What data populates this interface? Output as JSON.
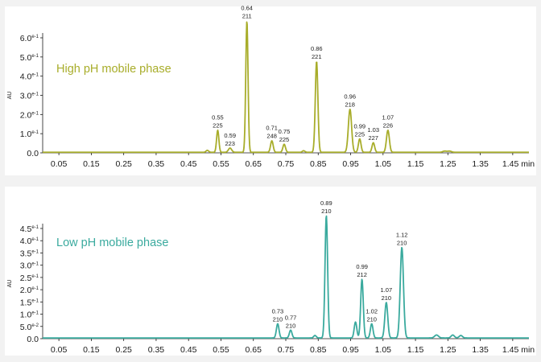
{
  "chart_data": [
    {
      "type": "line",
      "title": "High pH mobile phase",
      "ylabel": "AU",
      "xlabel": "",
      "x_unit": "min",
      "xlim": [
        0.0,
        1.5
      ],
      "ylim": [
        0,
        0.68
      ],
      "x_ticks": [
        "0.05",
        "0.15",
        "0.25",
        "0.35",
        "0.45",
        "0.55",
        "0.65",
        "0.75",
        "0.85",
        "0.95",
        "1.05",
        "1.15",
        "1.25",
        "1.35",
        "1.45"
      ],
      "y_ticks": [
        {
          "value": 0,
          "mantissa": "0.0",
          "exp": ""
        },
        {
          "value": 0.1,
          "mantissa": "1.0",
          "exp": "e-1"
        },
        {
          "value": 0.2,
          "mantissa": "2.0",
          "exp": "e-1"
        },
        {
          "value": 0.3,
          "mantissa": "3.0",
          "exp": "e-1"
        },
        {
          "value": 0.4,
          "mantissa": "4.0",
          "exp": "e-1"
        },
        {
          "value": 0.5,
          "mantissa": "5.0",
          "exp": "e-1"
        },
        {
          "value": 0.6,
          "mantissa": "6.0",
          "exp": "e-1"
        }
      ],
      "color": "#a8ad2a",
      "baseline": 0.003,
      "peaks": [
        {
          "x": 0.508,
          "y": 0.01,
          "width": 0.004
        },
        {
          "x": 0.54,
          "y": 0.115,
          "width": 0.0035,
          "label": [
            "0.55",
            "225"
          ]
        },
        {
          "x": 0.578,
          "y": 0.022,
          "width": 0.005,
          "label": [
            "0.59",
            "223"
          ]
        },
        {
          "x": 0.63,
          "y": 0.685,
          "width": 0.0035,
          "label": [
            "0.64",
            "211"
          ]
        },
        {
          "x": 0.707,
          "y": 0.06,
          "width": 0.004,
          "label": [
            "0.71",
            "248"
          ]
        },
        {
          "x": 0.745,
          "y": 0.042,
          "width": 0.004,
          "label": [
            "0.75",
            "225"
          ]
        },
        {
          "x": 0.805,
          "y": 0.008,
          "width": 0.004
        },
        {
          "x": 0.845,
          "y": 0.475,
          "width": 0.004,
          "label": [
            "0.86",
            "221"
          ]
        },
        {
          "x": 0.948,
          "y": 0.225,
          "width": 0.005,
          "label": [
            "0.96",
            "218"
          ]
        },
        {
          "x": 0.978,
          "y": 0.07,
          "width": 0.004,
          "label": [
            "0.99",
            "225"
          ]
        },
        {
          "x": 1.02,
          "y": 0.05,
          "width": 0.004,
          "label": [
            "1.03",
            "227"
          ]
        },
        {
          "x": 1.065,
          "y": 0.115,
          "width": 0.0045,
          "label": [
            "1.07",
            "226"
          ]
        },
        {
          "x": 1.24,
          "y": 0.006,
          "width": 0.006
        },
        {
          "x": 1.255,
          "y": 0.006,
          "width": 0.006
        }
      ]
    },
    {
      "type": "line",
      "title": "Low pH mobile phase",
      "ylabel": "AU",
      "xlabel": "",
      "x_unit": "min",
      "xlim": [
        0.0,
        1.5
      ],
      "ylim": [
        0,
        0.52
      ],
      "x_ticks": [
        "0.05",
        "0.15",
        "0.25",
        "0.35",
        "0.45",
        "0.55",
        "0.65",
        "0.75",
        "0.85",
        "0.95",
        "1.05",
        "1.15",
        "1.25",
        "1.35",
        "1.45"
      ],
      "y_ticks": [
        {
          "value": 0,
          "mantissa": "0.0",
          "exp": ""
        },
        {
          "value": 0.05,
          "mantissa": "5.0",
          "exp": "e-2"
        },
        {
          "value": 0.1,
          "mantissa": "1.0",
          "exp": "e-1"
        },
        {
          "value": 0.15,
          "mantissa": "1.5",
          "exp": "e-1"
        },
        {
          "value": 0.2,
          "mantissa": "2.0",
          "exp": "e-1"
        },
        {
          "value": 0.25,
          "mantissa": "2.5",
          "exp": "e-1"
        },
        {
          "value": 0.3,
          "mantissa": "3.0",
          "exp": "e-1"
        },
        {
          "value": 0.35,
          "mantissa": "3.5",
          "exp": "e-1"
        },
        {
          "value": 0.4,
          "mantissa": "4.0",
          "exp": "e-1"
        },
        {
          "value": 0.45,
          "mantissa": "4.5",
          "exp": "e-1"
        }
      ],
      "color": "#3aaa9e",
      "baseline": 0.003,
      "peaks": [
        {
          "x": 0.725,
          "y": 0.058,
          "width": 0.004,
          "label": [
            "0.73",
            "210"
          ]
        },
        {
          "x": 0.765,
          "y": 0.032,
          "width": 0.004,
          "label": [
            "0.77",
            "210"
          ]
        },
        {
          "x": 0.84,
          "y": 0.01,
          "width": 0.004
        },
        {
          "x": 0.875,
          "y": 0.5,
          "width": 0.004,
          "label": [
            "0.89",
            "210"
          ]
        },
        {
          "x": 0.965,
          "y": 0.065,
          "width": 0.004
        },
        {
          "x": 0.985,
          "y": 0.24,
          "width": 0.004,
          "label": [
            "0.99",
            "212"
          ]
        },
        {
          "x": 1.015,
          "y": 0.058,
          "width": 0.004,
          "label": [
            "1.02",
            "210"
          ]
        },
        {
          "x": 1.06,
          "y": 0.145,
          "width": 0.0045,
          "label": [
            "1.07",
            "210"
          ]
        },
        {
          "x": 1.108,
          "y": 0.37,
          "width": 0.005,
          "label": [
            "1.12",
            "210"
          ]
        },
        {
          "x": 1.215,
          "y": 0.012,
          "width": 0.006
        },
        {
          "x": 1.265,
          "y": 0.012,
          "width": 0.005
        },
        {
          "x": 1.29,
          "y": 0.01,
          "width": 0.005
        }
      ]
    }
  ]
}
